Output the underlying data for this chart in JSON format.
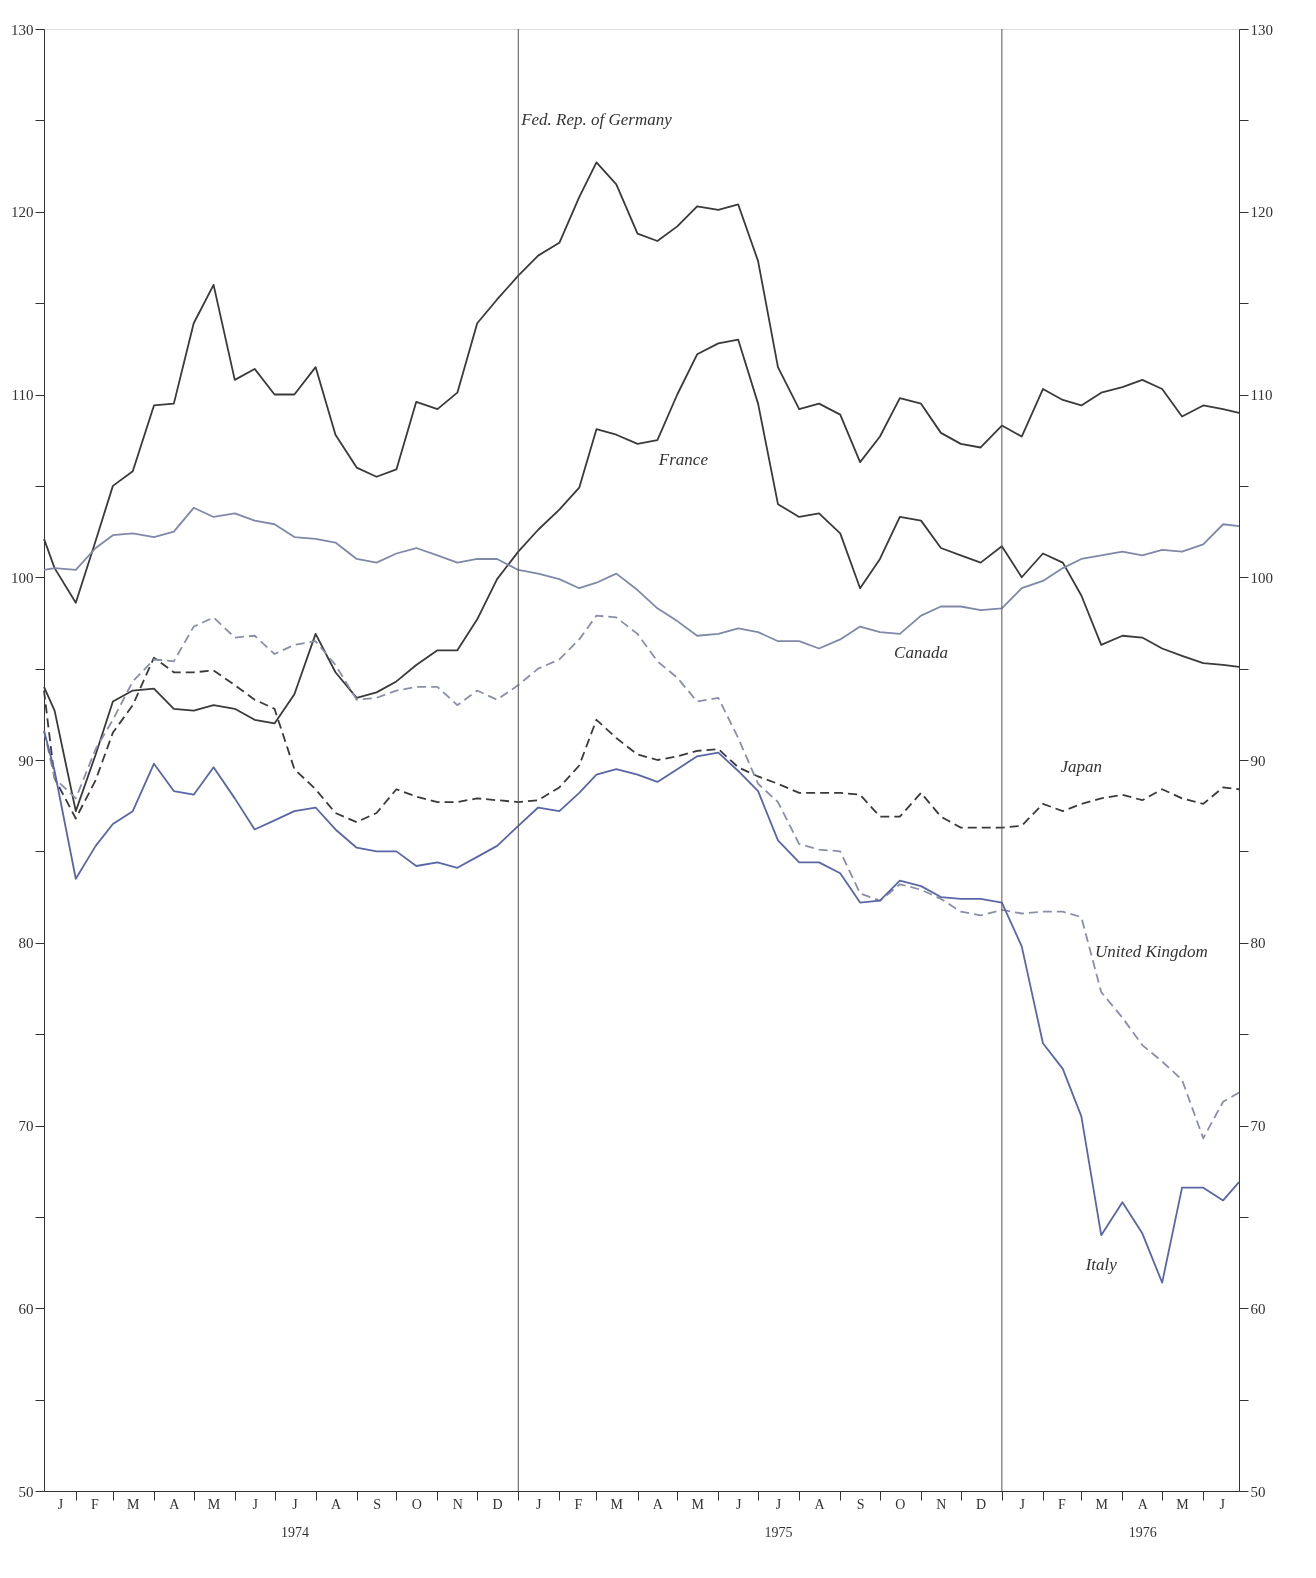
{
  "chart_data": {
    "type": "line",
    "x": [
      "1974-01-08",
      "1974-01-16",
      "1974-02-01",
      "1974-02-16",
      "1974-03-01",
      "1974-03-16",
      "1974-04-01",
      "1974-04-16",
      "1974-05-01",
      "1974-05-16",
      "1974-06-01",
      "1974-06-16",
      "1974-07-01",
      "1974-07-16",
      "1974-08-01",
      "1974-08-16",
      "1974-09-01",
      "1974-09-16",
      "1974-10-01",
      "1974-10-16",
      "1974-11-01",
      "1974-11-16",
      "1974-12-01",
      "1974-12-16",
      "1975-01-01",
      "1975-01-16",
      "1975-02-01",
      "1975-02-16",
      "1975-03-01",
      "1975-03-16",
      "1975-04-01",
      "1975-04-16",
      "1975-05-01",
      "1975-05-16",
      "1975-06-01",
      "1975-06-16",
      "1975-07-01",
      "1975-07-16",
      "1975-08-01",
      "1975-08-16",
      "1975-09-01",
      "1975-09-16",
      "1975-10-01",
      "1975-10-16",
      "1975-11-01",
      "1975-11-16",
      "1975-12-01",
      "1975-12-16",
      "1976-01-01",
      "1976-01-16",
      "1976-02-01",
      "1976-02-16",
      "1976-03-01",
      "1976-03-16",
      "1976-04-01",
      "1976-04-16",
      "1976-05-01",
      "1976-05-16",
      "1976-06-01",
      "1976-06-16",
      "1976-06-28"
    ],
    "series": [
      {
        "color": "#3a3a3a",
        "line_style": "solid",
        "values": [
          102.1,
          100.5,
          98.6,
          102.0,
          105.0,
          105.8,
          109.4,
          109.5,
          113.9,
          116.0,
          110.8,
          111.4,
          110.0,
          110.0,
          111.5,
          107.8,
          106.0,
          105.5,
          105.9,
          109.6,
          109.2,
          110.1,
          113.9,
          115.2,
          116.5,
          117.6,
          118.3,
          120.8,
          122.7,
          121.5,
          118.8,
          118.4,
          119.2,
          120.3,
          120.1,
          120.4,
          117.3,
          111.5,
          109.2,
          109.5,
          108.9,
          106.3,
          107.7,
          109.8,
          109.5,
          107.9,
          107.3,
          107.1,
          108.3,
          107.7,
          110.3,
          109.7,
          109.4,
          110.1,
          110.4,
          110.8,
          110.3,
          108.8,
          109.4,
          109.2,
          109.0
        ]
      },
      {
        "color": "#3a3a3a",
        "line_style": "solid",
        "values": [
          94.0,
          92.7,
          87.2,
          90.3,
          93.2,
          93.8,
          93.9,
          92.8,
          92.7,
          93.0,
          92.8,
          92.2,
          92.0,
          93.6,
          96.9,
          94.8,
          93.4,
          93.7,
          94.3,
          95.2,
          96.0,
          96.0,
          97.7,
          99.9,
          101.4,
          102.6,
          103.7,
          104.9,
          108.1,
          107.8,
          107.3,
          107.5,
          110.0,
          112.2,
          112.8,
          113.0,
          109.5,
          104.0,
          103.3,
          103.5,
          102.4,
          99.4,
          101.0,
          103.3,
          103.1,
          101.6,
          101.2,
          100.8,
          101.7,
          100.0,
          101.3,
          100.8,
          99.0,
          96.3,
          96.8,
          96.7,
          96.1,
          95.7,
          95.3,
          95.2,
          95.1
        ]
      },
      {
        "color": "#8088a8",
        "line_style": "solid",
        "values": [
          100.4,
          100.5,
          100.4,
          101.6,
          102.3,
          102.4,
          102.2,
          102.5,
          103.8,
          103.3,
          103.5,
          103.1,
          102.9,
          102.2,
          102.1,
          101.9,
          101.0,
          100.8,
          101.3,
          101.6,
          101.2,
          100.8,
          101.0,
          101.0,
          100.4,
          100.2,
          99.9,
          99.4,
          99.7,
          100.2,
          99.3,
          98.3,
          97.6,
          96.8,
          96.9,
          97.2,
          97.0,
          96.5,
          96.5,
          96.1,
          96.6,
          97.3,
          97.0,
          96.9,
          97.9,
          98.4,
          98.4,
          98.2,
          98.3,
          99.4,
          99.8,
          100.5,
          101.0,
          101.2,
          101.4,
          101.2,
          101.5,
          101.4,
          101.8,
          102.9,
          102.8
        ]
      },
      {
        "color": "#3a3a3a",
        "line_style": "dashed",
        "values": [
          93.8,
          89.0,
          86.8,
          88.9,
          91.5,
          93.0,
          95.6,
          94.8,
          94.8,
          94.9,
          94.1,
          93.3,
          92.8,
          89.5,
          88.4,
          87.1,
          86.6,
          87.1,
          88.4,
          88.0,
          87.7,
          87.7,
          87.9,
          87.8,
          87.7,
          87.8,
          88.5,
          89.7,
          92.2,
          91.2,
          90.3,
          90.0,
          90.2,
          90.5,
          90.6,
          89.6,
          89.1,
          88.7,
          88.2,
          88.2,
          88.2,
          88.1,
          86.9,
          86.9,
          88.2,
          86.9,
          86.3,
          86.3,
          86.3,
          86.4,
          87.6,
          87.2,
          87.6,
          87.9,
          88.1,
          87.8,
          88.4,
          87.9,
          87.6,
          88.5,
          88.4
        ]
      },
      {
        "color": "#8a8fa8",
        "line_style": "dashed",
        "values": [
          91.6,
          89.0,
          87.9,
          90.6,
          92.2,
          94.3,
          95.5,
          95.4,
          97.3,
          97.8,
          96.7,
          96.8,
          95.8,
          96.3,
          96.5,
          95.2,
          93.3,
          93.4,
          93.8,
          94.0,
          94.0,
          93.0,
          93.8,
          93.3,
          94.1,
          95.0,
          95.5,
          96.6,
          97.9,
          97.8,
          96.9,
          95.4,
          94.5,
          93.2,
          93.4,
          91.2,
          88.7,
          87.7,
          85.4,
          85.1,
          85.0,
          82.7,
          82.3,
          83.2,
          82.9,
          82.4,
          81.7,
          81.5,
          81.8,
          81.6,
          81.7,
          81.7,
          81.4,
          77.3,
          75.9,
          74.4,
          73.5,
          72.5,
          69.3,
          71.3,
          71.8
        ]
      },
      {
        "color": "#5a66a6",
        "line_style": "solid",
        "values": [
          91.6,
          89.4,
          83.5,
          85.3,
          86.5,
          87.2,
          89.8,
          88.3,
          88.1,
          89.6,
          87.9,
          86.2,
          86.7,
          87.2,
          87.4,
          86.2,
          85.2,
          85.0,
          85.0,
          84.2,
          84.4,
          84.1,
          84.7,
          85.3,
          86.4,
          87.4,
          87.2,
          88.2,
          89.2,
          89.5,
          89.2,
          88.8,
          89.5,
          90.2,
          90.4,
          89.4,
          88.3,
          85.6,
          84.4,
          84.4,
          83.8,
          82.2,
          82.3,
          83.4,
          83.1,
          82.5,
          82.4,
          82.4,
          82.2,
          79.8,
          74.5,
          73.1,
          70.5,
          64.0,
          65.8,
          64.1,
          61.4,
          66.6,
          66.6,
          65.9,
          66.9
        ]
      }
    ],
    "annotations": [
      {
        "text": "Fed. Rep. of Germany",
        "x": "1975-03-01",
        "y": 122.7
      },
      {
        "text": "France",
        "x": "1975-04-16",
        "y": 107.5
      },
      {
        "text": "Canada",
        "x": "1975-11-01",
        "y": 97.9
      },
      {
        "text": "Japan",
        "x": "1976-03-01",
        "y": 87.6
      },
      {
        "text": "United Kingdom",
        "x": "1976-03-01",
        "y": 81.4
      },
      {
        "text": "Italy",
        "x": "1976-03-16",
        "y": 64.0
      }
    ],
    "ref_lines": [
      {
        "axis": "x",
        "value": "1975-01-01",
        "color": "#555555"
      },
      {
        "axis": "x",
        "value": "1976-01-01",
        "color": "#555555"
      }
    ],
    "xlim": [
      "1974-01-08",
      "1976-06-28"
    ],
    "xticks": [
      {
        "value": "1974-01-20",
        "label": "J"
      },
      {
        "value": "1974-02-01",
        "label": null
      },
      {
        "value": "1974-02-15",
        "label": "F"
      },
      {
        "value": "1974-03-01",
        "label": null
      },
      {
        "value": "1974-03-16",
        "label": "M"
      },
      {
        "value": "1974-04-01",
        "label": null
      },
      {
        "value": "1974-04-16",
        "label": "A"
      },
      {
        "value": "1974-05-01",
        "label": null
      },
      {
        "value": "1974-05-16",
        "label": "M"
      },
      {
        "value": "1974-06-01",
        "label": null
      },
      {
        "value": "1974-06-16",
        "label": "J"
      },
      {
        "value": "1974-07-01",
        "label": null
      },
      {
        "value": "1974-07-16",
        "label": "J\n1974"
      },
      {
        "value": "1974-08-01",
        "label": null
      },
      {
        "value": "1974-08-16",
        "label": "A"
      },
      {
        "value": "1974-09-01",
        "label": null
      },
      {
        "value": "1974-09-16",
        "label": "S"
      },
      {
        "value": "1974-10-01",
        "label": null
      },
      {
        "value": "1974-10-16",
        "label": "O"
      },
      {
        "value": "1974-11-01",
        "label": null
      },
      {
        "value": "1974-11-16",
        "label": "N"
      },
      {
        "value": "1974-12-01",
        "label": null
      },
      {
        "value": "1974-12-16",
        "label": "D"
      },
      {
        "value": "1975-01-01",
        "label": null
      },
      {
        "value": "1975-01-16",
        "label": "J"
      },
      {
        "value": "1975-02-01",
        "label": null
      },
      {
        "value": "1975-02-15",
        "label": "F"
      },
      {
        "value": "1975-03-01",
        "label": null
      },
      {
        "value": "1975-03-16",
        "label": "M"
      },
      {
        "value": "1975-04-01",
        "label": null
      },
      {
        "value": "1975-04-16",
        "label": "A"
      },
      {
        "value": "1975-05-01",
        "label": null
      },
      {
        "value": "1975-05-16",
        "label": "M"
      },
      {
        "value": "1975-06-01",
        "label": null
      },
      {
        "value": "1975-06-16",
        "label": "J"
      },
      {
        "value": "1975-07-01",
        "label": null
      },
      {
        "value": "1975-07-16",
        "label": "J\n1975"
      },
      {
        "value": "1975-08-01",
        "label": null
      },
      {
        "value": "1975-08-16",
        "label": "A"
      },
      {
        "value": "1975-09-01",
        "label": null
      },
      {
        "value": "1975-09-16",
        "label": "S"
      },
      {
        "value": "1975-10-01",
        "label": null
      },
      {
        "value": "1975-10-16",
        "label": "O"
      },
      {
        "value": "1975-11-01",
        "label": null
      },
      {
        "value": "1975-11-16",
        "label": "N"
      },
      {
        "value": "1975-12-01",
        "label": null
      },
      {
        "value": "1975-12-16",
        "label": "D"
      },
      {
        "value": "1976-01-01",
        "label": null
      },
      {
        "value": "1976-01-16",
        "label": "J"
      },
      {
        "value": "1976-02-01",
        "label": null
      },
      {
        "value": "1976-02-15",
        "label": "F"
      },
      {
        "value": "1976-03-01",
        "label": null
      },
      {
        "value": "1976-03-16",
        "label": "M"
      },
      {
        "value": "1976-04-01",
        "label": null
      },
      {
        "value": "1976-04-16",
        "label": "A\n1976"
      },
      {
        "value": "1976-05-01",
        "label": null
      },
      {
        "value": "1976-05-16",
        "label": "M"
      },
      {
        "value": "1976-06-01",
        "label": null
      },
      {
        "value": "1976-06-15",
        "label": "J"
      }
    ],
    "ylim": [
      50,
      130
    ],
    "yticks": [
      50,
      {
        "value": 55,
        "label": null
      },
      60,
      {
        "value": 65,
        "label": null
      },
      70,
      {
        "value": 75,
        "label": null
      },
      80,
      {
        "value": 85,
        "label": null
      },
      90,
      {
        "value": 95,
        "label": null
      },
      100,
      {
        "value": 105,
        "label": null
      },
      110,
      {
        "value": 115,
        "label": null
      },
      120,
      {
        "value": 125,
        "label": null
      },
      130
    ],
    "y2lim": [
      50,
      130
    ],
    "y2ticks": [
      50,
      {
        "value": 55,
        "label": null
      },
      60,
      {
        "value": 65,
        "label": null
      },
      70,
      {
        "value": 75,
        "label": null
      },
      80,
      {
        "value": 85,
        "label": null
      },
      90,
      {
        "value": 95,
        "label": null
      },
      100,
      {
        "value": 105,
        "label": null
      },
      110,
      {
        "value": 115,
        "label": null
      },
      120,
      {
        "value": 125,
        "label": null
      },
      130
    ]
  }
}
